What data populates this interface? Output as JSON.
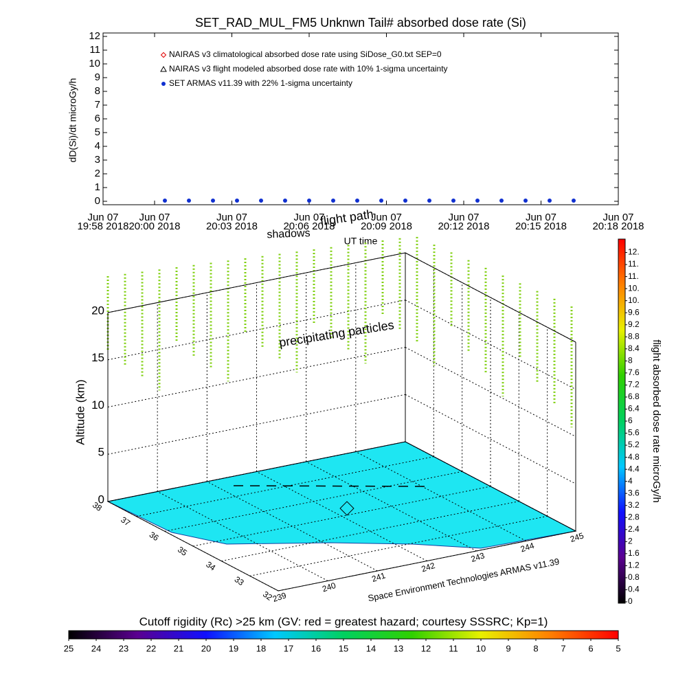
{
  "chart_data": [
    {
      "type": "line",
      "title": "SET_RAD_MUL_FM5 Unknwn Tail#  absorbed dose rate (Si)",
      "y_label": "dD(Si)/dt microGy/h",
      "x_label": "UT time",
      "ylim": [
        -0.25,
        12.25
      ],
      "yticks": [
        0,
        1,
        2,
        3,
        4,
        5,
        6,
        7,
        8,
        9,
        10,
        11,
        12
      ],
      "xlim": [
        "2018-06-07T19:58:00",
        "2018-06-07T20:18:00"
      ],
      "xticks": [
        {
          "value": "2018-06-07T19:58:00",
          "label": [
            "Jun 07",
            "19:58 2018"
          ]
        },
        {
          "value": "2018-06-07T20:00:00",
          "label": [
            "Jun 07",
            "20:00 2018"
          ]
        },
        {
          "value": "2018-06-07T20:03:00",
          "label": [
            "Jun 07",
            "20:03 2018"
          ]
        },
        {
          "value": "2018-06-07T20:06:00",
          "label": [
            "Jun 07",
            "20:06 2018"
          ]
        },
        {
          "value": "2018-06-07T20:09:00",
          "label": [
            "Jun 07",
            "20:09 2018"
          ]
        },
        {
          "value": "2018-06-07T20:12:00",
          "label": [
            "Jun 07",
            "20:12 2018"
          ]
        },
        {
          "value": "2018-06-07T20:15:00",
          "label": [
            "Jun 07",
            "20:15 2018"
          ]
        },
        {
          "value": "2018-06-07T20:18:00",
          "label": [
            "Jun 07",
            "20:18 2018"
          ]
        }
      ],
      "series": [
        {
          "name": "NAIRAS v3 climatological absorbed dose rate using SiDose_G0.txt SEP=0",
          "color": "#e00000",
          "marker": "diamond",
          "x": [],
          "values": []
        },
        {
          "name": "NAIRAS v3 flight modeled absorbed dose rate with 10% 1-sigma uncertainty",
          "color": "#000000",
          "marker": "triangle",
          "x": [],
          "values": []
        },
        {
          "name": "SET ARMAS v11.39 with 22% 1-sigma uncertainty",
          "color": "#1030d0",
          "marker": "circle",
          "x": [
            "2018-06-07T20:00:24",
            "2018-06-07T20:01:20",
            "2018-06-07T20:02:16",
            "2018-06-07T20:03:12",
            "2018-06-07T20:04:08",
            "2018-06-07T20:05:04",
            "2018-06-07T20:06:00",
            "2018-06-07T20:06:56",
            "2018-06-07T20:07:52",
            "2018-06-07T20:08:48",
            "2018-06-07T20:09:44",
            "2018-06-07T20:10:40",
            "2018-06-07T20:11:36",
            "2018-06-07T20:12:32",
            "2018-06-07T20:13:28",
            "2018-06-07T20:14:24",
            "2018-06-07T20:15:20",
            "2018-06-07T20:16:16"
          ],
          "values": [
            0.05,
            0.05,
            0.05,
            0.05,
            0.05,
            0.05,
            0.05,
            0.05,
            0.05,
            0.05,
            0.05,
            0.05,
            0.05,
            0.05,
            0.05,
            0.05,
            0.05,
            0.05
          ]
        }
      ]
    },
    {
      "type": "surface3d",
      "z_label": "Altitude (km)",
      "zlim": [
        0,
        20
      ],
      "zticks": [
        0,
        5,
        10,
        15,
        20
      ],
      "xlim": [
        239,
        245
      ],
      "xticks": [
        239,
        240,
        241,
        242,
        243,
        244,
        245
      ],
      "ylim": [
        32,
        38
      ],
      "yticks": [
        32,
        33,
        34,
        35,
        36,
        37,
        38
      ],
      "floor_color": "#1ee6f2",
      "column_color": "#80d010",
      "annotations": [
        "shadows",
        "flight path",
        "precipitating particles",
        "Space Environment Technologies ARMAS v11.39"
      ]
    },
    {
      "type": "colorbar",
      "orientation": "vertical",
      "label": "flight absorbed dose rate microGy/h",
      "clim": [
        0,
        12
      ],
      "colors": [
        "#000000",
        "#5a0090",
        "#1010ff",
        "#00c8ff",
        "#00d060",
        "#30d000",
        "#e8f000",
        "#ff8000",
        "#ff0000"
      ],
      "ticks": [
        0.0,
        0.4,
        0.8,
        1.2,
        1.6,
        2.0,
        2.4,
        2.8,
        3.2,
        3.6,
        4.0,
        4.4,
        4.8,
        5.2,
        5.6,
        6.0,
        6.4,
        6.8,
        7.2,
        7.6,
        8.0,
        8.4,
        8.8,
        9.2,
        9.6,
        {
          "value": 10.0,
          "label": "10."
        },
        {
          "value": 10.4,
          "label": "10."
        },
        {
          "value": 10.8,
          "label": "11."
        },
        {
          "value": 11.2,
          "label": "11."
        },
        {
          "value": 11.6,
          "label": "12."
        }
      ]
    },
    {
      "type": "colorbar",
      "orientation": "horizontal",
      "label": "Cutoff rigidity (Rc) >25 km (GV: red = greatest hazard; courtesy SSSRC; Kp=1)",
      "clim": [
        25,
        5
      ],
      "colors": [
        "#000000",
        "#5a0090",
        "#1010ff",
        "#00c8ff",
        "#00d060",
        "#30d000",
        "#e8f000",
        "#ff8000",
        "#ff0000"
      ],
      "ticks": [
        25,
        24,
        23,
        22,
        21,
        20,
        19,
        18,
        17,
        16,
        15,
        14,
        13,
        12,
        11,
        10,
        9,
        8,
        7,
        6,
        5
      ]
    }
  ]
}
